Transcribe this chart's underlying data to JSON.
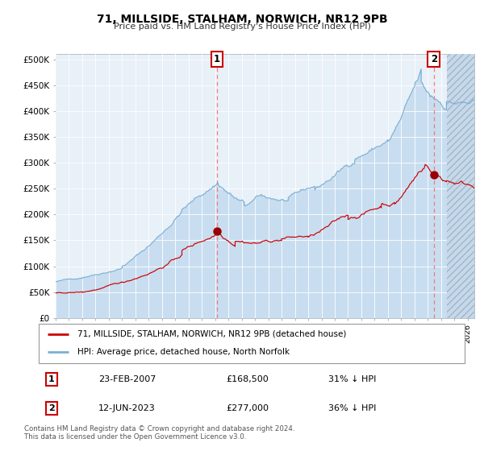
{
  "title": "71, MILLSIDE, STALHAM, NORWICH, NR12 9PB",
  "subtitle": "Price paid vs. HM Land Registry's House Price Index (HPI)",
  "ylabel_ticks": [
    "£0",
    "£50K",
    "£100K",
    "£150K",
    "£200K",
    "£250K",
    "£300K",
    "£350K",
    "£400K",
    "£450K",
    "£500K"
  ],
  "ytick_vals": [
    0,
    50000,
    100000,
    150000,
    200000,
    250000,
    300000,
    350000,
    400000,
    450000,
    500000
  ],
  "ylim": [
    0,
    510000
  ],
  "xlim_start": 1995.0,
  "xlim_end": 2026.5,
  "transaction1_date": 2007.14,
  "transaction1_price": 168500,
  "transaction1_label": "1",
  "transaction2_date": 2023.45,
  "transaction2_price": 277000,
  "transaction2_label": "2",
  "legend_label_red": "71, MILLSIDE, STALHAM, NORWICH, NR12 9PB (detached house)",
  "legend_label_blue": "HPI: Average price, detached house, North Norfolk",
  "table_row1": [
    "1",
    "23-FEB-2007",
    "£168,500",
    "31% ↓ HPI"
  ],
  "table_row2": [
    "2",
    "12-JUN-2023",
    "£277,000",
    "36% ↓ HPI"
  ],
  "footer": "Contains HM Land Registry data © Crown copyright and database right 2024.\nThis data is licensed under the Open Government Licence v3.0.",
  "hpi_line_color": "#7aafd4",
  "hpi_fill_color": "#c8ddf0",
  "price_color": "#cc0000",
  "plot_bg": "#e8f0f8",
  "grid_color": "#d0d8e4",
  "marker_color": "#990000",
  "hatch_color": "#b0c8e0",
  "hatch_start": 2024.42
}
